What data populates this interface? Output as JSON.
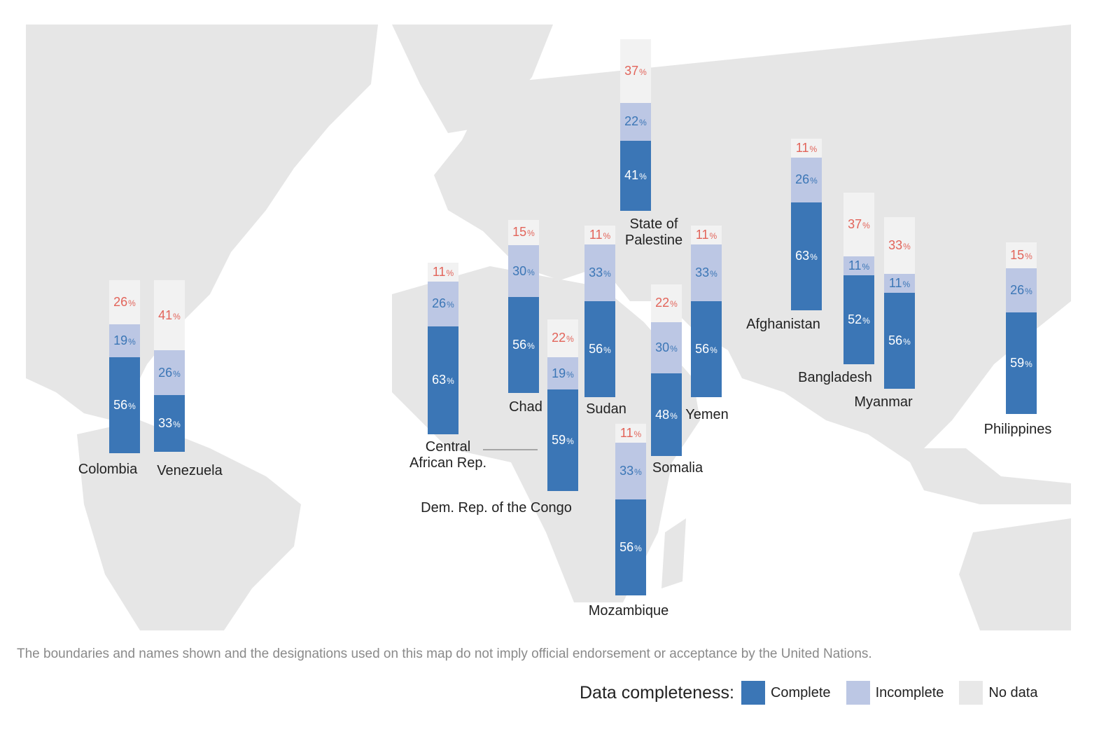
{
  "chart_data": {
    "type": "bar",
    "stacked": true,
    "unit": "%",
    "categories": [
      "Colombia",
      "Venezuela",
      "Central African Rep.",
      "Chad",
      "Dem. Rep. of the Congo",
      "Sudan",
      "State of Palestine",
      "Somalia",
      "Mozambique",
      "Yemen",
      "Afghanistan",
      "Bangladesh",
      "Myanmar",
      "Philippines"
    ],
    "series": [
      {
        "name": "Complete",
        "color": "#3b76b6",
        "values": [
          56,
          33,
          63,
          56,
          59,
          56,
          41,
          48,
          56,
          56,
          63,
          52,
          56,
          59
        ]
      },
      {
        "name": "Incomplete",
        "color": "#bcc7e4",
        "values": [
          19,
          26,
          26,
          30,
          19,
          33,
          22,
          30,
          33,
          33,
          26,
          11,
          11,
          26
        ]
      },
      {
        "name": "No data",
        "color": "#f2f2f2",
        "values": [
          26,
          41,
          11,
          15,
          22,
          11,
          37,
          22,
          11,
          11,
          11,
          37,
          33,
          15
        ]
      }
    ],
    "label_lines": {
      "Central African Rep.": [
        "Central",
        "African Rep."
      ],
      "State of Palestine": [
        "State of",
        "Palestine"
      ]
    }
  },
  "disclaimer": "The boundaries and names shown and the designations used on this map do not imply official endorsement or acceptance by the United Nations.",
  "legend": {
    "title": "Data completeness:",
    "items": [
      {
        "label": "Complete",
        "color": "#3b76b6"
      },
      {
        "label": "Incomplete",
        "color": "#bcc7e4"
      },
      {
        "label": "No data",
        "color": "#e8e8e8"
      }
    ]
  }
}
